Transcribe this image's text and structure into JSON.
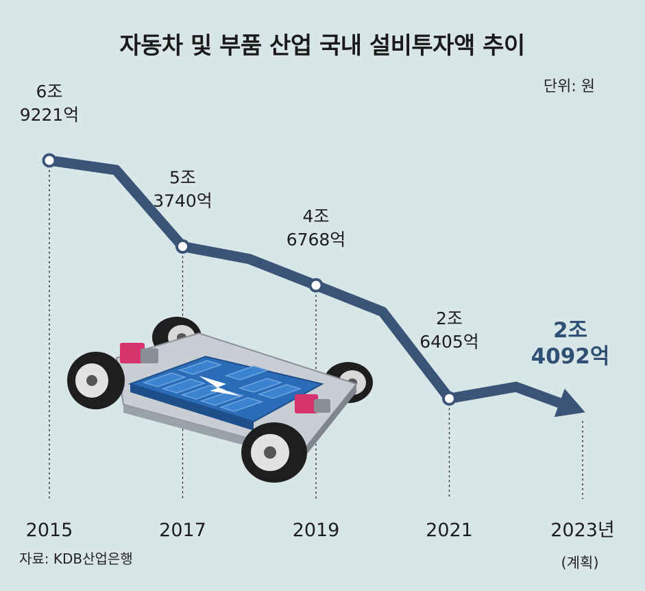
{
  "chart_data": {
    "type": "line",
    "title": "자동차 및 부품 산업 국내 설비투자액 추이",
    "unit": "단위: 원",
    "source": "자료: KDB산업은행",
    "x": [
      2015,
      2016,
      2017,
      2018,
      2019,
      2020,
      2021,
      2022,
      2023
    ],
    "x_tick_labels": [
      "2015",
      "2017",
      "2019",
      "2021",
      "2023년"
    ],
    "x_tick_values": [
      2015,
      2017,
      2019,
      2021,
      2023
    ],
    "x_note": "(계획)",
    "series": [
      {
        "values": [
          69221,
          67500,
          53740,
          51500,
          46768,
          42000,
          26405,
          28500,
          24092
        ]
      }
    ],
    "data_labels": [
      {
        "x": 2015,
        "line1": "6조",
        "line2": "9221억"
      },
      {
        "x": 2017,
        "line1": "5조",
        "line2": "3740억"
      },
      {
        "x": 2019,
        "line1": "4조",
        "line2": "6768억"
      },
      {
        "x": 2021,
        "line1": "2조",
        "line2": "6405억"
      },
      {
        "x": 2023,
        "line1": "2조",
        "line2": "4092억",
        "highlight": true
      }
    ],
    "xlim": [
      2015,
      2023
    ],
    "ylim": [
      20000,
      75000
    ],
    "colors": {
      "background": "#d9e6e8",
      "line": "#3a5478",
      "highlight_label": "#2f4f73",
      "marker_fill": "#ffffff"
    },
    "illustration": "electric-vehicle-battery-chassis"
  }
}
